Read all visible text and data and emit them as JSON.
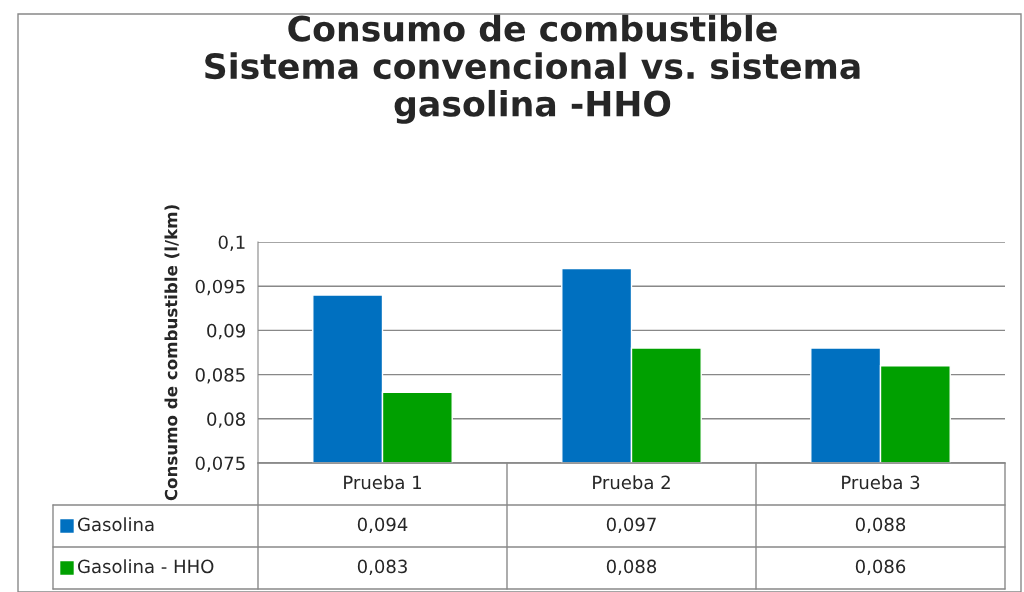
{
  "chart_data": {
    "type": "bar",
    "title": "Consumo de combustible\nSistema convencional vs. sistema\ngasolina -HHO",
    "ylabel": "Consumo de combustible (l/km)",
    "categories": [
      "Prueba 1",
      "Prueba 2",
      "Prueba 3"
    ],
    "series": [
      {
        "name": "Gasolina",
        "color": "#0070c0",
        "values": [
          0.094,
          0.097,
          0.088
        ],
        "value_labels": [
          "0,094",
          "0,097",
          "0,088"
        ]
      },
      {
        "name": "Gasolina - HHO",
        "color": "#00a000",
        "values": [
          0.083,
          0.088,
          0.086
        ],
        "value_labels": [
          "0,083",
          "0,088",
          "0,086"
        ]
      }
    ],
    "ylim": [
      0.075,
      0.1
    ],
    "yticks": [
      {
        "value": 0.075,
        "label": "0,075"
      },
      {
        "value": 0.08,
        "label": "0,08"
      },
      {
        "value": 0.085,
        "label": "0,085"
      },
      {
        "value": 0.09,
        "label": "0,09"
      },
      {
        "value": 0.095,
        "label": "0,095"
      },
      {
        "value": 0.1,
        "label": "0,1"
      }
    ],
    "grid": "y",
    "legend": "bottom left"
  }
}
